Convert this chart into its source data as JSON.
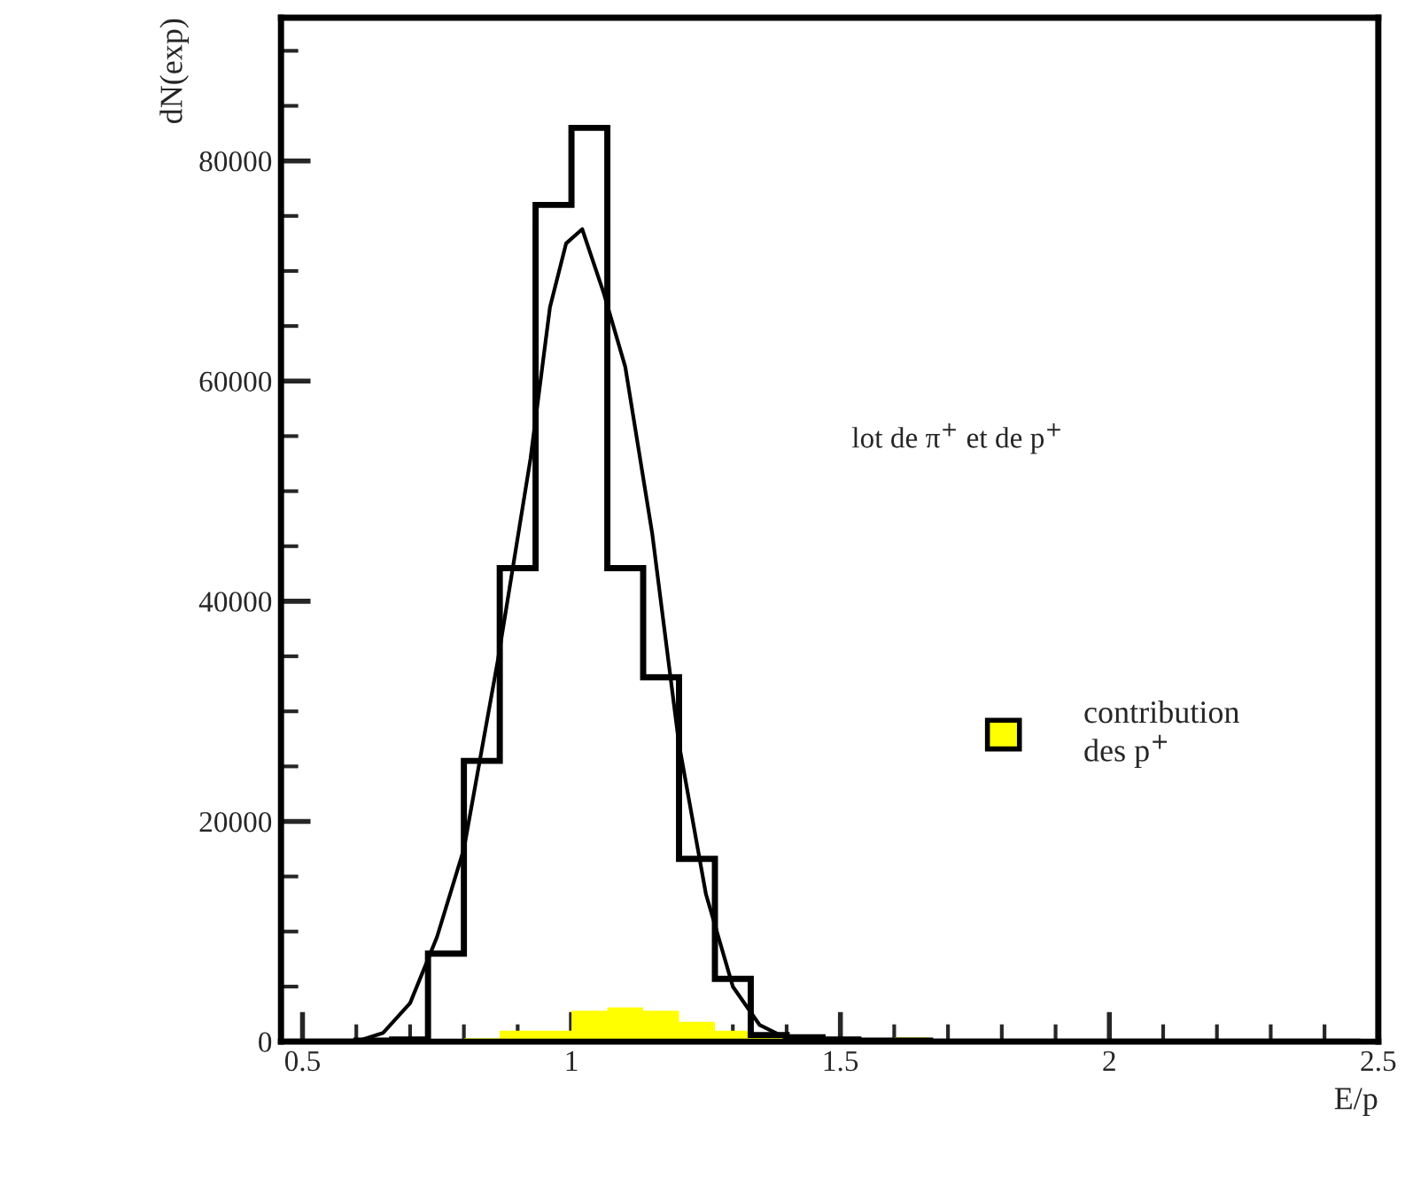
{
  "chart_data": {
    "type": "histogram",
    "xlabel": "E/p",
    "ylabel": "dN(exp)",
    "annotations": [
      "lot de π$^{+}$ et de p$^{+}$"
    ],
    "xlim": [
      0.46,
      2.5
    ],
    "ylim": [
      0,
      93000
    ],
    "xticks": [
      0.5,
      {
        "value": 0.6,
        "label": null
      },
      {
        "value": 0.7,
        "label": null
      },
      {
        "value": 0.8,
        "label": null
      },
      {
        "value": 0.9,
        "label": null
      },
      1,
      {
        "value": 1.1,
        "label": null
      },
      {
        "value": 1.2,
        "label": null
      },
      {
        "value": 1.3,
        "label": null
      },
      {
        "value": 1.4,
        "label": null
      },
      1.5,
      {
        "value": 1.6,
        "label": null
      },
      {
        "value": 1.7,
        "label": null
      },
      {
        "value": 1.8,
        "label": null
      },
      {
        "value": 1.9,
        "label": null
      },
      2,
      {
        "value": 2.1,
        "label": null
      },
      {
        "value": 2.2,
        "label": null
      },
      {
        "value": 2.3,
        "label": null
      },
      {
        "value": 2.4,
        "label": null
      },
      2.5
    ],
    "yticks": [
      0,
      {
        "value": 5000,
        "label": null
      },
      {
        "value": 10000,
        "label": null
      },
      {
        "value": 15000,
        "label": null
      },
      20000,
      {
        "value": 25000,
        "label": null
      },
      {
        "value": 30000,
        "label": null
      },
      {
        "value": 35000,
        "label": null
      },
      40000,
      {
        "value": 45000,
        "label": null
      },
      {
        "value": 50000,
        "label": null
      },
      {
        "value": 55000,
        "label": null
      },
      60000,
      {
        "value": 65000,
        "label": null
      },
      {
        "value": 70000,
        "label": null
      },
      {
        "value": 75000,
        "label": null
      },
      80000,
      {
        "value": 85000,
        "label": null
      },
      {
        "value": 90000,
        "label": null
      }
    ],
    "legend": "right",
    "series": [
      {
        "name": "contribution\ndes p$^{+}$",
        "color": "#ffff00",
        "bins": [
          0.4667,
          0.5333,
          0.6,
          0.6667,
          0.7333,
          0.8,
          0.8667,
          0.9333,
          1.0,
          1.0667,
          1.1333,
          1.2,
          1.2667,
          1.3333,
          1.4,
          1.4667,
          1.5333,
          1.6,
          1.6667,
          1.7333,
          1.8,
          1.8667,
          1.9333,
          2.0,
          2.0667,
          2.1333,
          2.2,
          2.2667,
          2.3333,
          2.4,
          2.4667
        ],
        "values": [
          0,
          0,
          0,
          0,
          0,
          300,
          1000,
          1000,
          2800,
          3100,
          2800,
          1800,
          1000,
          400,
          0,
          0,
          0,
          400,
          0,
          0,
          0,
          0,
          0,
          0,
          0,
          0,
          0,
          0,
          0,
          0
        ]
      },
      {
        "color": "#000000",
        "bins": [
          0.4667,
          0.5333,
          0.6,
          0.6667,
          0.7333,
          0.8,
          0.8667,
          0.9333,
          1.0,
          1.0667,
          1.1333,
          1.2,
          1.2667,
          1.3333,
          1.4,
          1.4667,
          1.5333,
          1.6,
          1.6667,
          1.7333,
          1.8,
          1.8667,
          1.9333,
          2.0,
          2.0667,
          2.1333,
          2.2,
          2.2667,
          2.3333,
          2.4,
          2.4667
        ],
        "values": [
          0,
          0,
          100,
          200,
          8000,
          25500,
          43000,
          76000,
          83000,
          43000,
          33100,
          16600,
          5700,
          600,
          400,
          200,
          100,
          100,
          0,
          0,
          0,
          0,
          0,
          0,
          0,
          0,
          0,
          0,
          0,
          0
        ]
      },
      {
        "type": "line",
        "color": "#000000",
        "x": [
          0.6,
          0.65,
          0.7,
          0.75,
          0.8,
          0.863,
          0.924,
          0.96,
          0.99,
          1.02,
          1.06,
          1.1,
          1.15,
          1.2,
          1.25,
          1.3,
          1.35,
          1.4,
          1.45
        ],
        "values": [
          0,
          800,
          3500,
          9500,
          17500,
          34600,
          53000,
          66700,
          72500,
          73800,
          68000,
          61300,
          46200,
          27000,
          13400,
          5000,
          1500,
          300,
          0
        ]
      }
    ]
  }
}
